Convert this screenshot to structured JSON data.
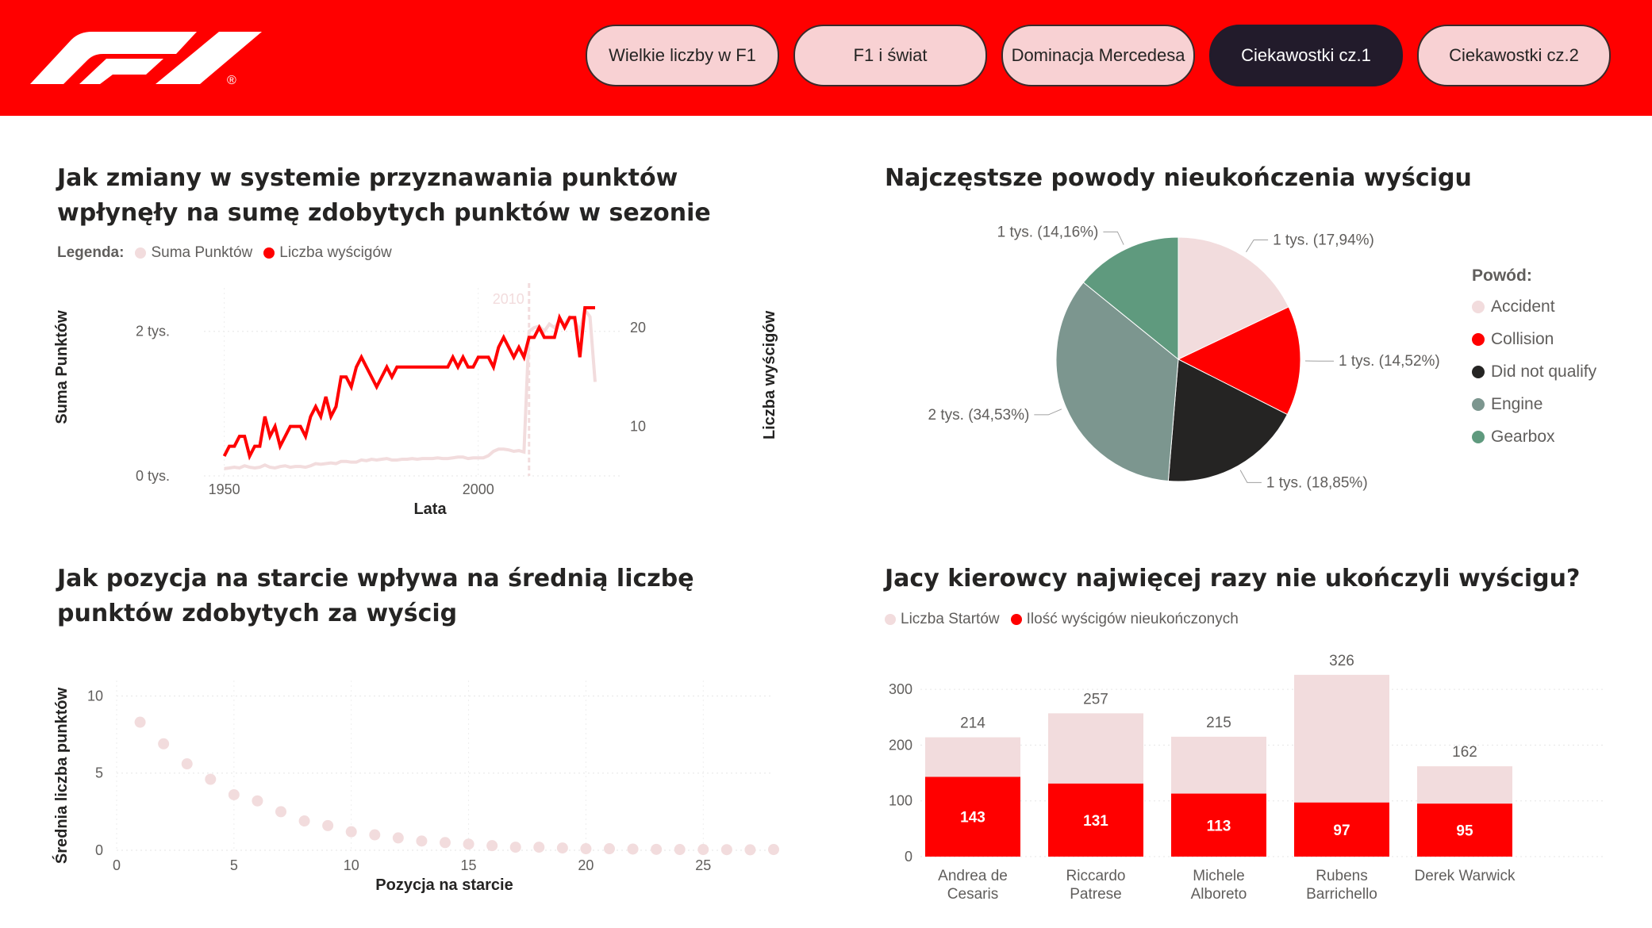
{
  "nav": {
    "tabs": [
      {
        "label": "Wielkie liczby w F1"
      },
      {
        "label": "F1 i świat"
      },
      {
        "label": "Dominacja Mercedesa"
      },
      {
        "label": "Ciekawostki cz.1",
        "active": true
      },
      {
        "label": "Ciekawostki cz.2"
      }
    ],
    "logo_text": "®"
  },
  "colors": {
    "header": "#ff0000",
    "red": "#ff0000",
    "pink": "#f2dcdd",
    "dark": "#252423",
    "engine": "#7c968f",
    "gearbox": "#5f9a7e",
    "nav_btn": "#f8d1d3",
    "nav_active": "#221b2b"
  },
  "charts": {
    "points_system": {
      "title": "Jak zmiany w systemie przyznawania punktów wpłynęły na sumę zdobytych punktów w sezonie",
      "legend_label": "Legenda:",
      "series_names": [
        "Suma Punktów",
        "Liczba wyścigów"
      ],
      "xlabel": "Lata",
      "ylabel_left": "Suma Punktów",
      "ylabel_right": "Liczba wyścigów",
      "left_ticks": [
        "2 tys.",
        "0 tys."
      ],
      "right_ticks": [
        "20",
        "10"
      ],
      "x_ticks": [
        "1950",
        "2000"
      ],
      "marker_label": "2010"
    },
    "start_position": {
      "title": "Jak pozycja na starcie wpływa na średnią liczbę punktów zdobytych za wyścig",
      "xlabel": "Pozycja na starcie",
      "ylabel": "Średnia liczba punktów",
      "x_ticks": [
        "0",
        "5",
        "10",
        "15",
        "20",
        "25"
      ],
      "y_ticks": [
        "10",
        "5",
        "0"
      ]
    },
    "dnf_reasons": {
      "title": "Najczęstsze powody nieukończenia wyścigu",
      "legend_title": "Powód:",
      "legend": [
        "Accident",
        "Collision",
        "Did not qualify",
        "Engine",
        "Gearbox"
      ],
      "labels": {
        "accident": "1 tys. (17,94%)",
        "collision": "1 tys. (14,52%)",
        "dnq": "1 tys. (18,85%)",
        "engine": "2 tys. (34,53%)",
        "gearbox": "1 tys. (14,16%)"
      }
    },
    "drivers_dnf": {
      "title": "Jacy kierowcy najwięcej razy nie ukończyli wyścigu?",
      "series_names": [
        "Liczba Startów",
        "Ilość wyścigów nieukończonych"
      ],
      "y_ticks": [
        "300",
        "200",
        "100",
        "0"
      ],
      "drivers": [
        {
          "line1": "Andrea de",
          "line2": "Cesaris"
        },
        {
          "line1": "Riccardo",
          "line2": "Patrese"
        },
        {
          "line1": "Michele",
          "line2": "Alboreto"
        },
        {
          "line1": "Rubens",
          "line2": "Barrichello"
        },
        {
          "line1": "Derek Warwick",
          "line2": ""
        }
      ],
      "starts_labels": [
        "214",
        "257",
        "215",
        "326",
        "162"
      ],
      "dnf_labels": [
        "143",
        "131",
        "113",
        "97",
        "95"
      ]
    }
  },
  "chart_data": [
    {
      "type": "line",
      "title": "Jak zmiany w systemie przyznawania punktów wpłynęły na sumę zdobytych punktów w sezonie",
      "xlabel": "Lata",
      "ylabel": "Suma Punktów",
      "y2label": "Liczba wyścigów",
      "x": [
        1950,
        1951,
        1952,
        1953,
        1954,
        1955,
        1956,
        1957,
        1958,
        1959,
        1960,
        1961,
        1962,
        1963,
        1964,
        1965,
        1966,
        1967,
        1968,
        1969,
        1970,
        1971,
        1972,
        1973,
        1974,
        1975,
        1976,
        1977,
        1978,
        1979,
        1980,
        1981,
        1982,
        1983,
        1984,
        1985,
        1986,
        1987,
        1988,
        1989,
        1990,
        1991,
        1992,
        1993,
        1994,
        1995,
        1996,
        1997,
        1998,
        1999,
        2000,
        2001,
        2002,
        2003,
        2004,
        2005,
        2006,
        2007,
        2008,
        2009,
        2010,
        2011,
        2012,
        2013,
        2014,
        2015,
        2016,
        2017,
        2018,
        2019,
        2020,
        2021,
        2022,
        2023
      ],
      "series": [
        {
          "name": "Suma Punktów",
          "axis": "left",
          "values": [
            100,
            110,
            120,
            110,
            140,
            120,
            110,
            120,
            150,
            120,
            110,
            130,
            140,
            120,
            130,
            130,
            120,
            140,
            170,
            160,
            170,
            180,
            170,
            200,
            200,
            190,
            190,
            220,
            210,
            230,
            220,
            230,
            240,
            220,
            220,
            230,
            230,
            240,
            230,
            240,
            240,
            240,
            250,
            240,
            240,
            250,
            260,
            260,
            240,
            250,
            250,
            250,
            280,
            340,
            370,
            370,
            360,
            340,
            350,
            330,
            2000,
            2050,
            2070,
            2000,
            2100,
            2050,
            2150,
            2100,
            2200,
            2150,
            2000,
            2300,
            2200,
            1300
          ],
          "note": ""
        },
        {
          "name": "Liczba wyścigów",
          "axis": "right",
          "values": [
            7,
            8,
            8,
            9,
            9,
            7,
            8,
            8,
            11,
            9,
            10,
            8,
            9,
            10,
            10,
            10,
            9,
            11,
            12,
            11,
            13,
            11,
            12,
            15,
            15,
            14,
            16,
            17,
            16,
            15,
            14,
            15,
            16,
            15,
            16,
            16,
            16,
            16,
            16,
            16,
            16,
            16,
            16,
            16,
            16,
            17,
            16,
            17,
            16,
            16,
            17,
            17,
            17,
            16,
            18,
            19,
            18,
            17,
            18,
            17,
            19,
            19,
            20,
            19,
            19,
            19,
            21,
            20,
            21,
            21,
            17,
            22,
            22,
            22
          ]
        }
      ],
      "x_ticks": [
        1950,
        2000
      ],
      "annotation": "2010",
      "ylim_left": [
        0,
        2600
      ],
      "ylim_right": [
        5,
        24
      ]
    },
    {
      "type": "scatter",
      "title": "Jak pozycja na starcie wpływa na średnią liczbę punktów zdobytych za wyścig",
      "xlabel": "Pozycja na starcie",
      "ylabel": "Średnia liczba punktów",
      "x": [
        1,
        2,
        3,
        4,
        5,
        6,
        7,
        8,
        9,
        10,
        11,
        12,
        13,
        14,
        15,
        16,
        17,
        18,
        19,
        20,
        21,
        22,
        23,
        24,
        25,
        26,
        27,
        28
      ],
      "y": [
        8.3,
        6.9,
        5.6,
        4.6,
        3.6,
        3.2,
        2.5,
        1.9,
        1.6,
        1.2,
        1.0,
        0.8,
        0.6,
        0.5,
        0.4,
        0.3,
        0.2,
        0.2,
        0.15,
        0.1,
        0.1,
        0.08,
        0.06,
        0.05,
        0.05,
        0.04,
        0.03,
        0.05
      ],
      "xlim": [
        0,
        28
      ],
      "ylim": [
        0,
        11
      ]
    },
    {
      "type": "pie",
      "title": "Najczęstsze powody nieukończenia wyścigu",
      "categories": [
        "Accident",
        "Collision",
        "Did not qualify",
        "Engine",
        "Gearbox"
      ],
      "values": [
        17.94,
        14.52,
        18.85,
        34.53,
        14.16
      ]
    },
    {
      "type": "bar",
      "title": "Jacy kierowcy najwięcej razy nie ukończyli wyścigu?",
      "categories": [
        "Andrea de Cesaris",
        "Riccardo Patrese",
        "Michele Alboreto",
        "Rubens Barrichello",
        "Derek Warwick"
      ],
      "series": [
        {
          "name": "Liczba Startów",
          "values": [
            214,
            257,
            215,
            326,
            162
          ]
        },
        {
          "name": "Ilość wyścigów nieukończonych",
          "values": [
            143,
            131,
            113,
            97,
            95
          ]
        }
      ],
      "ylim": [
        0,
        350
      ]
    }
  ]
}
